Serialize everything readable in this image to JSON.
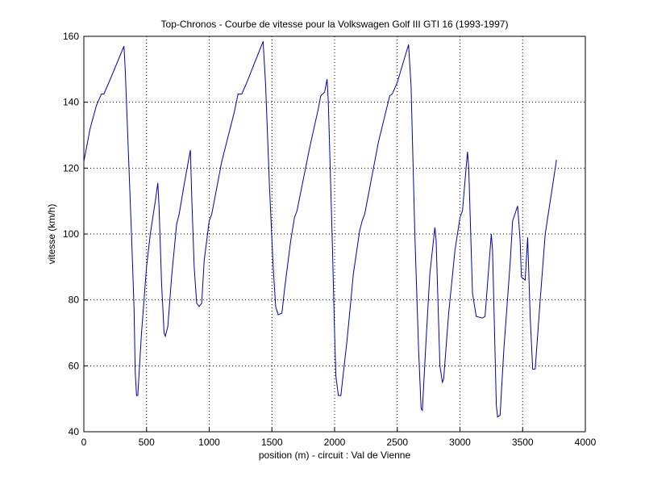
{
  "chart_data": {
    "type": "line",
    "title": "Top-Chronos - Courbe de vitesse pour la Volkswagen Golf III GTI 16 (1993-1997)",
    "xlabel": "position (m) - circuit : Val de Vienne",
    "ylabel": "vitesse (km/h)",
    "xlim": [
      0,
      4000
    ],
    "xticks": [
      0,
      500,
      1000,
      1500,
      2000,
      2500,
      3000,
      3500,
      4000
    ],
    "ylim": [
      40,
      160
    ],
    "yticks": [
      40,
      60,
      80,
      100,
      120,
      140,
      160
    ],
    "grid": true,
    "series": [
      {
        "color": "#0000aa",
        "x": [
          0,
          50,
          100,
          140,
          160,
          200,
          320,
          330,
          360,
          380,
          400,
          410,
          420,
          430,
          460,
          500,
          530,
          550,
          570,
          590,
          600,
          620,
          640,
          650,
          670,
          700,
          740,
          760,
          800,
          850,
          860,
          880,
          900,
          920,
          940,
          960,
          1000,
          1020,
          1100,
          1200,
          1230,
          1260,
          1300,
          1430,
          1450,
          1480,
          1510,
          1530,
          1550,
          1580,
          1600,
          1650,
          1680,
          1700,
          1800,
          1870,
          1890,
          1920,
          1940,
          1950,
          1980,
          2000,
          2010,
          2030,
          2050,
          2100,
          2150,
          2200,
          2220,
          2240,
          2350,
          2440,
          2460,
          2500,
          2590,
          2610,
          2640,
          2670,
          2690,
          2700,
          2730,
          2760,
          2800,
          2810,
          2840,
          2860,
          2870,
          2910,
          2960,
          3000,
          3020,
          3060,
          3070,
          3100,
          3130,
          3180,
          3200,
          3250,
          3260,
          3290,
          3300,
          3320,
          3350,
          3400,
          3420,
          3460,
          3480,
          3490,
          3520,
          3540,
          3560,
          3580,
          3600,
          3640,
          3680,
          3700,
          3770
        ],
        "values": [
          122,
          132,
          139,
          142.5,
          142.5,
          146,
          157,
          150,
          120,
          100,
          78,
          58,
          51,
          51,
          70,
          90,
          100,
          105,
          110,
          115.5,
          108,
          85,
          70,
          69,
          72,
          87,
          103,
          106,
          115,
          125.5,
          112,
          90,
          79,
          78,
          79,
          92,
          104,
          106,
          122,
          137,
          142.5,
          142.5,
          146,
          158.5,
          145,
          115,
          90,
          78,
          75.5,
          76,
          83,
          98,
          105,
          107,
          126,
          138,
          142,
          143,
          147,
          140,
          100,
          70,
          57,
          51,
          51,
          68,
          88,
          101,
          104,
          106,
          128,
          142,
          142.5,
          146,
          157.5,
          145,
          100,
          65,
          47,
          46.5,
          68,
          88,
          102,
          98,
          60,
          55,
          56,
          76,
          95,
          105,
          107,
          125,
          120,
          82,
          75,
          74.5,
          75,
          100,
          95,
          48,
          44.5,
          45,
          65,
          91,
          104,
          108.5,
          98,
          87,
          86,
          99,
          75,
          59,
          59,
          80,
          100,
          105,
          122.5
        ]
      }
    ]
  }
}
